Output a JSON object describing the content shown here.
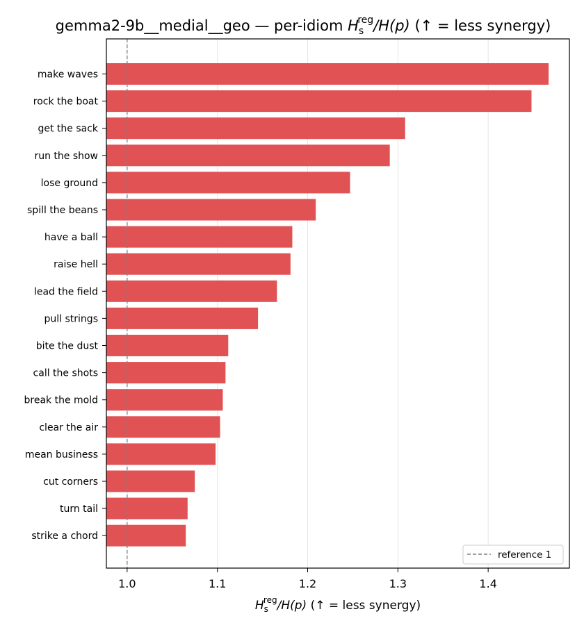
{
  "chart_data": {
    "type": "bar",
    "orientation": "horizontal",
    "title_prefix": "gemma2-9b__medial__geo — per-idiom ",
    "title_suffix": "(↑ = less synergy)",
    "xlabel_suffix": "(↑ = less synergy)",
    "metric_symbol": {
      "H": "H",
      "sub": "s",
      "sup": "reg",
      "rest": "/H(p)"
    },
    "categories": [
      "make waves",
      "rock the boat",
      "get the sack",
      "run the show",
      "lose ground",
      "spill the beans",
      "have a ball",
      "raise hell",
      "lead the field",
      "pull strings",
      "bite the dust",
      "call the shots",
      "break the mold",
      "clear the air",
      "mean business",
      "cut corners",
      "turn tail",
      "strike a chord"
    ],
    "values": [
      1.467,
      1.448,
      1.308,
      1.291,
      1.247,
      1.209,
      1.183,
      1.181,
      1.166,
      1.145,
      1.112,
      1.109,
      1.106,
      1.103,
      1.098,
      1.075,
      1.067,
      1.065
    ],
    "xlim": [
      0.977,
      1.49
    ],
    "xticks": [
      1.0,
      1.1,
      1.2,
      1.3,
      1.4
    ],
    "xtick_labels": [
      "1.0",
      "1.1",
      "1.2",
      "1.3",
      "1.4"
    ],
    "reference_line": {
      "x": 1.0,
      "label": "reference 1"
    },
    "legend_position": "lower-right",
    "grid": "x-major",
    "colors": {
      "bar": "#e05254",
      "reference": "#808080",
      "grid": "#e6e6e6"
    }
  }
}
